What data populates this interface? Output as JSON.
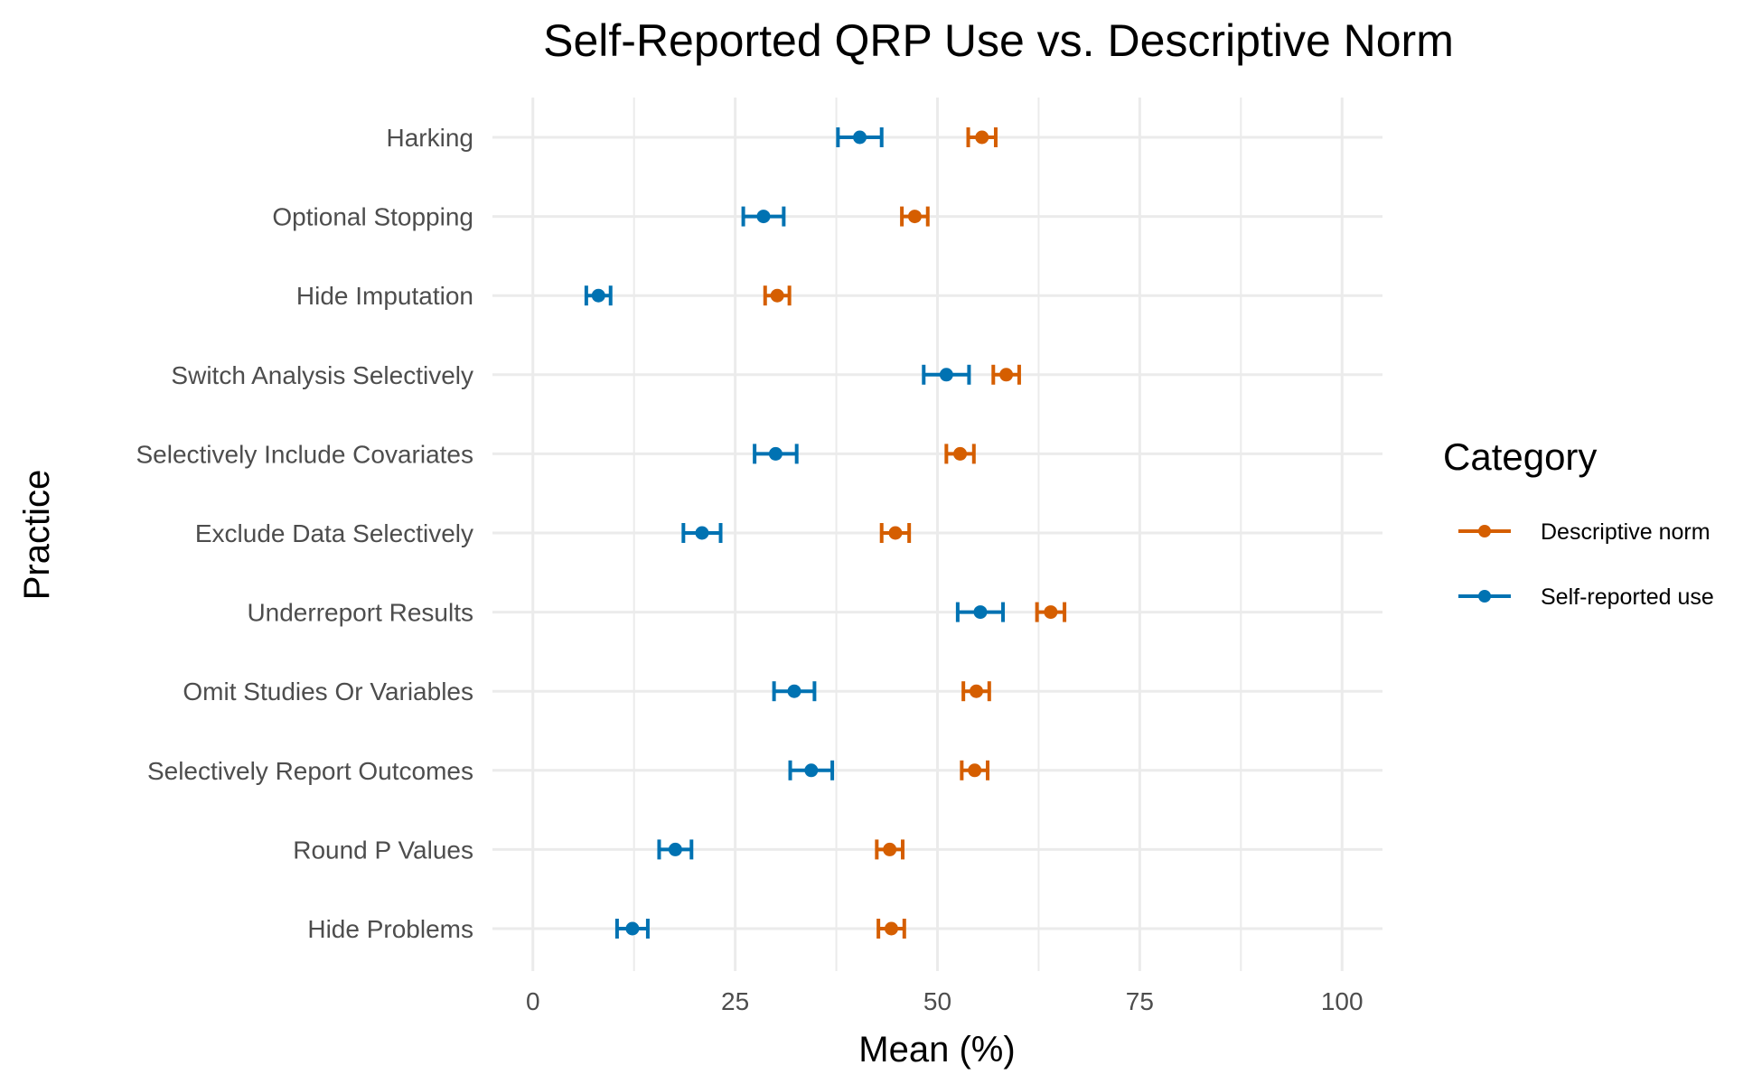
{
  "chart_data": {
    "type": "dot-errorbar",
    "title": "Self-Reported QRP Use vs. Descriptive Norm",
    "xlabel": "Mean (%)",
    "ylabel": "Practice",
    "xlim": [
      -5,
      105
    ],
    "xticks": [
      0,
      25,
      50,
      75,
      100
    ],
    "grid": true,
    "legend": {
      "title": "Category",
      "position": "right"
    },
    "categories": [
      "Harking",
      "Optional Stopping",
      "Hide Imputation",
      "Switch Analysis Selectively",
      "Selectively Include Covariates",
      "Exclude Data Selectively",
      "Underreport Results",
      "Omit Studies Or Variables",
      "Selectively Report Outcomes",
      "Round P Values",
      "Hide Problems"
    ],
    "series": [
      {
        "name": "Descriptive norm",
        "color": "#d55e00",
        "values": [
          55.5,
          47.2,
          30.2,
          58.5,
          52.8,
          44.8,
          64.0,
          54.8,
          54.6,
          44.1,
          44.3
        ],
        "lower": [
          53.8,
          45.6,
          28.7,
          56.9,
          51.1,
          43.1,
          62.3,
          53.2,
          53.0,
          42.5,
          42.7
        ],
        "upper": [
          57.2,
          48.8,
          31.7,
          60.1,
          54.5,
          46.5,
          65.7,
          56.4,
          56.2,
          45.7,
          45.9
        ]
      },
      {
        "name": "Self-reported use",
        "color": "#0072b2",
        "values": [
          40.4,
          28.5,
          8.1,
          51.1,
          30.0,
          20.9,
          55.3,
          32.3,
          34.4,
          17.6,
          12.3
        ],
        "lower": [
          37.7,
          26.0,
          6.6,
          48.3,
          27.4,
          18.6,
          52.5,
          29.8,
          31.8,
          15.6,
          10.4
        ],
        "upper": [
          43.1,
          31.0,
          9.6,
          53.9,
          32.6,
          23.2,
          58.1,
          34.8,
          37.0,
          19.6,
          14.2
        ]
      }
    ]
  }
}
